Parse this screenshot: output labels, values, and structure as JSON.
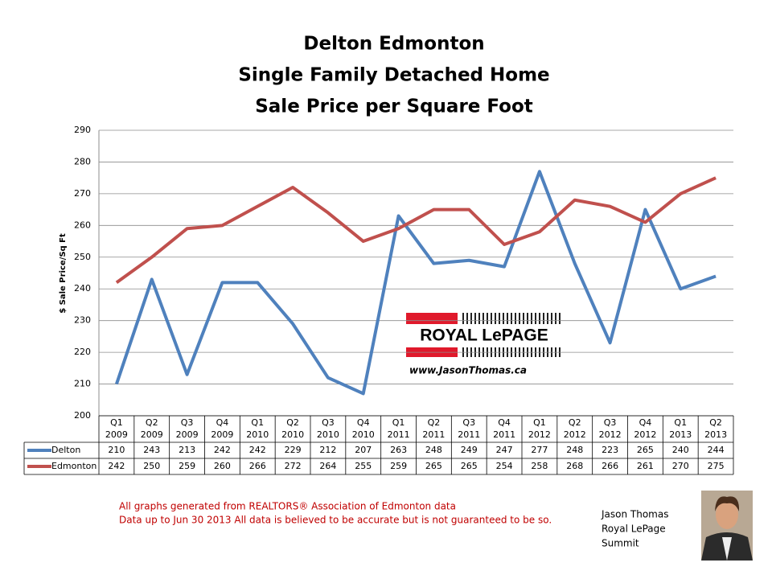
{
  "chart_data": {
    "type": "line",
    "title": [
      "Delton Edmonton",
      "Single Family Detached Home",
      "Sale Price per Square Foot"
    ],
    "y_label": "$ Sale Price/Sq Ft",
    "categories": [
      "Q1 2009",
      "Q2 2009",
      "Q3 2009",
      "Q4 2009",
      "Q1 2010",
      "Q2 2010",
      "Q3 2010",
      "Q4 2010",
      "Q1 2011",
      "Q2 2011",
      "Q3 2011",
      "Q4 2011",
      "Q1 2012",
      "Q2 2012",
      "Q3 2012",
      "Q4 2012",
      "Q1 2013",
      "Q2 2013"
    ],
    "series": [
      {
        "name": "Delton",
        "color": "#4f81bd",
        "values": [
          210,
          243,
          213,
          242,
          242,
          229,
          212,
          207,
          263,
          248,
          249,
          247,
          277,
          248,
          223,
          265,
          240,
          244
        ]
      },
      {
        "name": "Edmonton",
        "color": "#c0504d",
        "values": [
          242,
          250,
          259,
          260,
          266,
          272,
          264,
          255,
          259,
          265,
          265,
          254,
          258,
          268,
          266,
          261,
          270,
          275
        ]
      }
    ],
    "ylim": [
      200,
      290
    ],
    "yticks": [
      200,
      210,
      220,
      230,
      240,
      250,
      260,
      270,
      280,
      290
    ],
    "grid": true,
    "logo": "ROYAL LePAGE",
    "website": "www.JasonThomas.ca",
    "notes": [
      "All graphs generated from REALTORS® Association of Edmonton data",
      "Data up to  Jun 30 2013  All data is believed to be accurate but is not guaranteed to be so."
    ],
    "agent": [
      "Jason Thomas",
      "Royal LePage",
      "Summit"
    ]
  }
}
